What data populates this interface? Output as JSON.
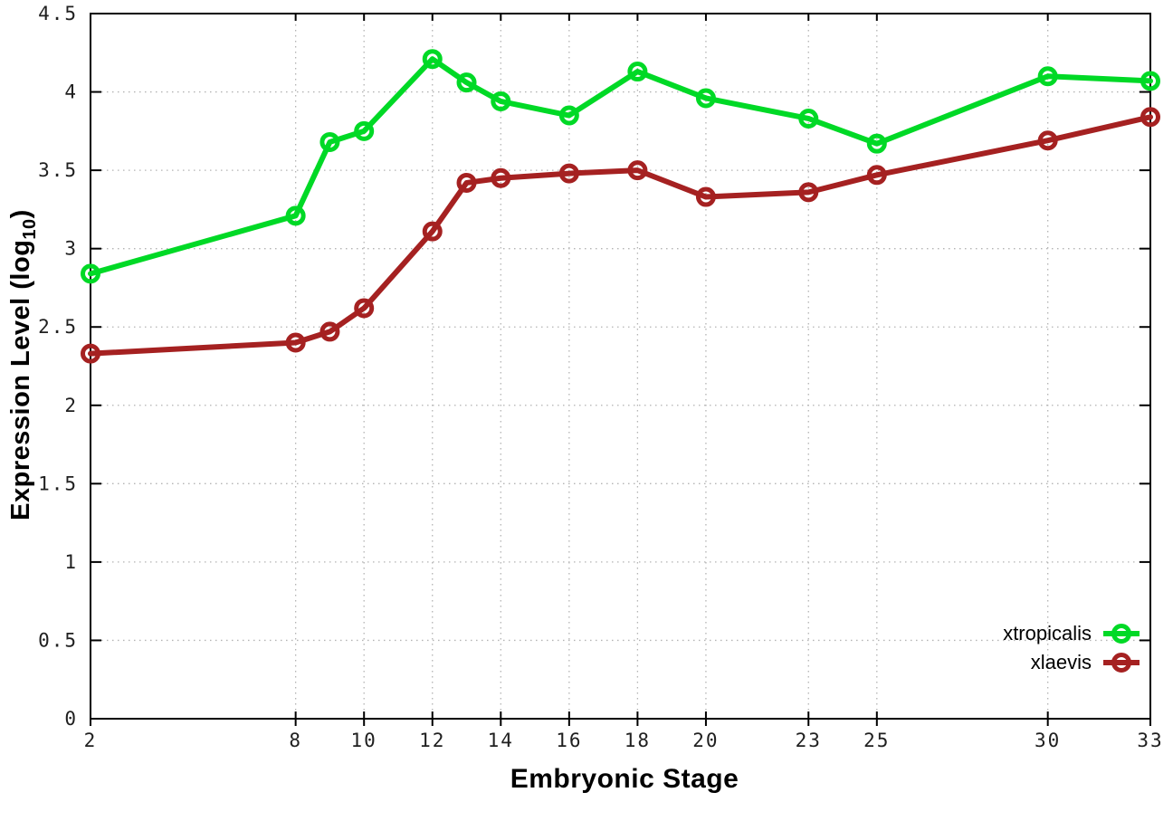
{
  "chart_data": {
    "type": "line",
    "title": "",
    "xlabel": "Embryonic Stage",
    "ylabel": "Expression Level (log10)",
    "ylabel_parts": {
      "main": "Expression Level (log",
      "sub": "10",
      "suffix": ")"
    },
    "x": [
      2,
      8,
      9,
      10,
      12,
      13,
      14,
      16,
      18,
      20,
      23,
      25,
      30,
      33
    ],
    "xlim": [
      2,
      33
    ],
    "ylim": [
      0,
      4.5
    ],
    "x_ticks": [
      2,
      8,
      10,
      12,
      14,
      16,
      18,
      20,
      23,
      25,
      30,
      33
    ],
    "y_ticks": [
      0,
      0.5,
      1,
      1.5,
      2,
      2.5,
      3,
      3.5,
      4,
      4.5
    ],
    "grid": true,
    "legend_position": "bottom-right",
    "marker": "open-circle",
    "series": [
      {
        "name": "xtropicalis",
        "color": "#00d926",
        "values": [
          2.84,
          3.21,
          3.68,
          3.75,
          4.21,
          4.06,
          3.94,
          3.85,
          4.13,
          3.96,
          3.83,
          3.67,
          4.1,
          4.07
        ]
      },
      {
        "name": "xlaevis",
        "color": "#a52121",
        "values": [
          2.33,
          2.4,
          2.47,
          2.62,
          3.11,
          3.42,
          3.45,
          3.48,
          3.5,
          3.33,
          3.36,
          3.47,
          3.69,
          3.84
        ]
      }
    ],
    "colors": {
      "axis": "#000000",
      "grid": "#b3b3b3",
      "tick_label": "#202020",
      "background": "#ffffff"
    }
  }
}
